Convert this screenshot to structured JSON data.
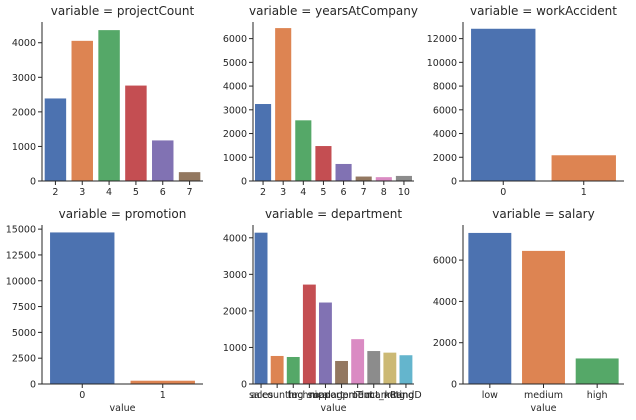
{
  "colors": [
    "#4c72b0",
    "#dd8452",
    "#55a868",
    "#c44e52",
    "#8172b3",
    "#937860",
    "#da8bc3",
    "#8c8c8c",
    "#ccb974",
    "#64b5cd"
  ],
  "chart_data": [
    {
      "type": "bar",
      "title": "variable = projectCount",
      "xlabel": "",
      "categories": [
        "2",
        "3",
        "4",
        "5",
        "6",
        "7"
      ],
      "values": [
        2388,
        4055,
        4365,
        2761,
        1174,
        256
      ],
      "ylim": [
        0,
        4600
      ],
      "yticks": [
        0,
        1000,
        2000,
        3000,
        4000
      ],
      "grid": false
    },
    {
      "type": "bar",
      "title": "variable = yearsAtCompany",
      "xlabel": "",
      "categories": [
        "2",
        "3",
        "4",
        "5",
        "6",
        "7",
        "8",
        "10"
      ],
      "values": [
        3244,
        6443,
        2557,
        1473,
        718,
        188,
        162,
        214
      ],
      "ylim": [
        0,
        6700
      ],
      "yticks": [
        0,
        1000,
        2000,
        3000,
        4000,
        5000,
        6000
      ],
      "grid": false
    },
    {
      "type": "bar",
      "title": "variable = workAccident",
      "xlabel": "",
      "categories": [
        "0",
        "1"
      ],
      "values": [
        12830,
        2169
      ],
      "ylim": [
        0,
        13400
      ],
      "yticks": [
        0,
        2000,
        4000,
        6000,
        8000,
        10000,
        12000
      ],
      "grid": false
    },
    {
      "type": "bar",
      "title": "variable = promotion",
      "xlabel": "value",
      "categories": [
        "0",
        "1"
      ],
      "values": [
        14680,
        319
      ],
      "ylim": [
        0,
        15400
      ],
      "yticks": [
        0,
        2500,
        5000,
        7500,
        10000,
        12500,
        15000
      ],
      "grid": false
    },
    {
      "type": "bar",
      "title": "variable = department",
      "xlabel": "value",
      "categories": [
        "sales",
        "accounting",
        "hr",
        "technical",
        "support",
        "management",
        "IT",
        "product_mng",
        "marketing",
        "RandD"
      ],
      "values": [
        4140,
        767,
        739,
        2720,
        2229,
        630,
        1227,
        902,
        858,
        787
      ],
      "ylim": [
        0,
        4350
      ],
      "yticks": [
        0,
        1000,
        2000,
        3000,
        4000
      ],
      "grid": false
    },
    {
      "type": "bar",
      "title": "variable = salary",
      "xlabel": "value",
      "categories": [
        "low",
        "medium",
        "high"
      ],
      "values": [
        7316,
        6446,
        1237
      ],
      "ylim": [
        0,
        7700
      ],
      "yticks": [
        0,
        2000,
        4000,
        6000
      ],
      "grid": false
    }
  ]
}
